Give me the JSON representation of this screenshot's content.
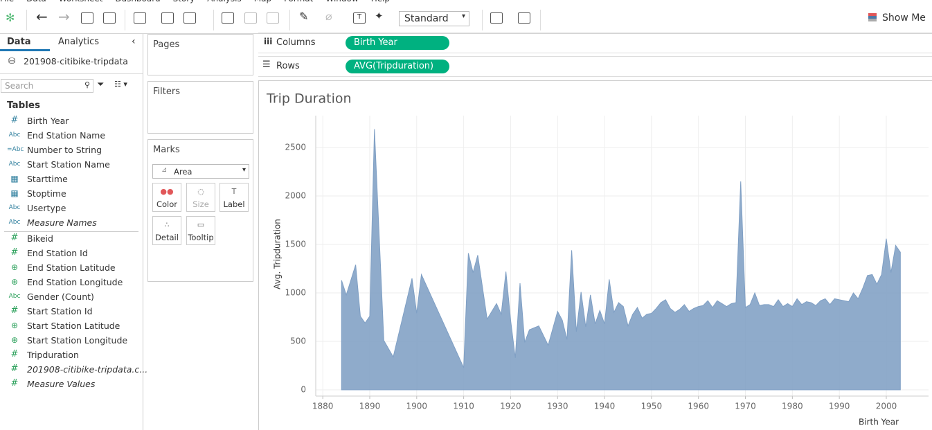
{
  "menu": [
    "File",
    "Data",
    "Worksheet",
    "Dashboard",
    "Story",
    "Analysis",
    "Map",
    "Format",
    "Window",
    "Help"
  ],
  "toolbar": {
    "view_size": "Standard",
    "show_me": "Show Me"
  },
  "data_pane": {
    "tabs": [
      "Data",
      "Analytics"
    ],
    "datasource": "201908-citibike-tripdata",
    "search_placeholder": "Search",
    "tables_heading": "Tables",
    "dimensions": [
      {
        "kind": "number",
        "icon": "#",
        "name": "Birth Year"
      },
      {
        "kind": "string",
        "icon": "Abc",
        "name": "End Station Name"
      },
      {
        "kind": "string",
        "icon": "=Abc",
        "name": "Number to String"
      },
      {
        "kind": "string",
        "icon": "Abc",
        "name": "Start Station Name"
      },
      {
        "kind": "date",
        "name": "Starttime"
      },
      {
        "kind": "date",
        "name": "Stoptime"
      },
      {
        "kind": "string",
        "icon": "Abc",
        "name": "Usertype"
      },
      {
        "kind": "string",
        "icon": "Abc",
        "name": "Measure Names",
        "italic": true
      }
    ],
    "measures": [
      {
        "kind": "number",
        "icon": "#",
        "name": "Bikeid"
      },
      {
        "kind": "number",
        "icon": "#",
        "name": "End Station Id"
      },
      {
        "kind": "geo",
        "name": "End Station Latitude"
      },
      {
        "kind": "geo",
        "name": "End Station Longitude"
      },
      {
        "kind": "string",
        "icon": "Abc",
        "name": "Gender (Count)"
      },
      {
        "kind": "number",
        "icon": "#",
        "name": "Start Station Id"
      },
      {
        "kind": "geo",
        "name": "Start Station Latitude"
      },
      {
        "kind": "geo",
        "name": "Start Station Longitude"
      },
      {
        "kind": "number",
        "icon": "#",
        "name": "Tripduration"
      },
      {
        "kind": "number",
        "icon": "#",
        "name": "201908-citibike-tripdata.c...",
        "italic": true
      },
      {
        "kind": "number",
        "icon": "#",
        "name": "Measure Values",
        "italic": true
      }
    ]
  },
  "shelves": {
    "pages": "Pages",
    "filters": "Filters",
    "marks": "Marks",
    "mark_type": "Area",
    "mark_buttons": [
      "Color",
      "Size",
      "Label",
      "Detail",
      "Tooltip"
    ],
    "columns": {
      "label": "Columns",
      "pill": "Birth Year"
    },
    "rows": {
      "label": "Rows",
      "pill": "AVG(Tripduration)"
    }
  },
  "chart_data": {
    "type": "area",
    "title": "Trip Duration",
    "x_label": "Birth Year",
    "y_label": "Avg. Tripduration",
    "color": "#7f9fc4",
    "grid": true,
    "x": [
      1884,
      1885,
      1887,
      1888,
      1889,
      1890,
      1891,
      1893,
      1895,
      1899,
      1900,
      1901,
      1910,
      1911,
      1912,
      1913,
      1915,
      1917,
      1918,
      1919,
      1920,
      1921,
      1922,
      1923,
      1924,
      1926,
      1928,
      1930,
      1931,
      1932,
      1933,
      1934,
      1935,
      1936,
      1937,
      1938,
      1939,
      1940,
      1941,
      1942,
      1943,
      1944,
      1945,
      1946,
      1947,
      1948,
      1949,
      1950,
      1951,
      1952,
      1953,
      1954,
      1955,
      1956,
      1957,
      1958,
      1959,
      1960,
      1961,
      1962,
      1963,
      1964,
      1965,
      1966,
      1967,
      1968,
      1969,
      1970,
      1971,
      1972,
      1973,
      1974,
      1975,
      1976,
      1977,
      1978,
      1979,
      1980,
      1981,
      1982,
      1983,
      1984,
      1985,
      1986,
      1987,
      1988,
      1989,
      1990,
      1991,
      1992,
      1993,
      1994,
      1995,
      1996,
      1997,
      1998,
      1999,
      2000,
      2001,
      2002,
      2003
    ],
    "values": [
      1130,
      980,
      1290,
      760,
      690,
      760,
      2690,
      510,
      340,
      1150,
      790,
      1190,
      230,
      1410,
      1210,
      1390,
      730,
      890,
      780,
      1220,
      720,
      330,
      1100,
      490,
      620,
      660,
      460,
      810,
      720,
      520,
      1440,
      600,
      1010,
      650,
      980,
      680,
      820,
      680,
      1140,
      800,
      900,
      860,
      660,
      780,
      850,
      740,
      780,
      790,
      840,
      900,
      930,
      840,
      800,
      830,
      880,
      810,
      840,
      860,
      870,
      920,
      850,
      920,
      890,
      860,
      890,
      900,
      2150,
      850,
      880,
      1000,
      870,
      880,
      880,
      860,
      930,
      860,
      890,
      860,
      940,
      880,
      910,
      900,
      870,
      920,
      940,
      880,
      940,
      930,
      920,
      910,
      1000,
      940,
      1050,
      1180,
      1190,
      1090,
      1190,
      1560,
      1210,
      1490,
      1420
    ],
    "xlim": [
      1878.5,
      2009
    ],
    "xticks": [
      1880,
      1890,
      1900,
      1910,
      1920,
      1930,
      1940,
      1950,
      1960,
      1970,
      1980,
      1990,
      2000
    ],
    "ylim": [
      -64,
      2829
    ],
    "yticks": [
      0,
      500,
      1000,
      1500,
      2000,
      2500
    ]
  }
}
